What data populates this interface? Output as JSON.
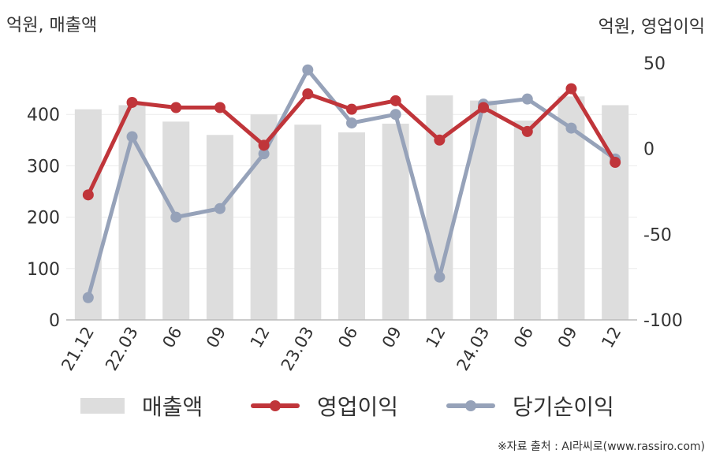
{
  "chart_data": {
    "type": "bar+line",
    "categories": [
      "21.12",
      "22.03",
      "06",
      "09",
      "12",
      "23.03",
      "06",
      "09",
      "12",
      "24.03",
      "06",
      "09",
      "12"
    ],
    "left_axis": {
      "unit": "억원, 매출액",
      "ylim": [
        0,
        500
      ],
      "ticks": [
        0,
        100,
        200,
        300,
        400
      ]
    },
    "right_axis": {
      "unit": "억원, 영업이익",
      "ylim": [
        -100,
        50
      ],
      "ticks": [
        -100,
        -50,
        0,
        50
      ]
    },
    "series": [
      {
        "name": "매출액",
        "kind": "bar",
        "axis": "left",
        "color": "#dddddd",
        "values": [
          410,
          418,
          386,
          360,
          400,
          380,
          365,
          382,
          437,
          427,
          388,
          435,
          418
        ]
      },
      {
        "name": "영업이익",
        "kind": "line",
        "axis": "right",
        "color": "#c0353a",
        "values": [
          -27,
          27,
          24,
          24,
          2,
          32,
          23,
          28,
          5,
          24,
          10,
          35,
          -8
        ]
      },
      {
        "name": "당기순이익",
        "kind": "line",
        "axis": "right",
        "color": "#96a2b9",
        "values": [
          -87,
          7,
          -40,
          -35,
          -3,
          46,
          15,
          20,
          -75,
          26,
          29,
          12,
          -6
        ]
      }
    ],
    "grid": true,
    "legend_position": "bottom"
  },
  "source_text": "※자료 출처 : AI라씨로(www.rassiro.com)"
}
